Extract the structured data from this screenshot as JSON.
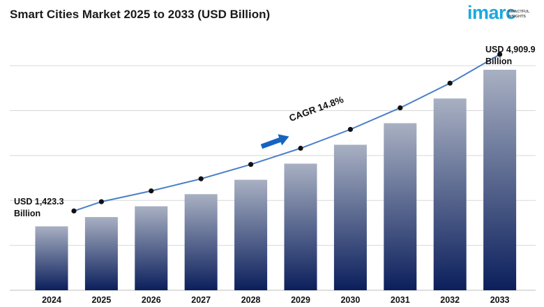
{
  "title": "Smart Cities Market 2025 to 2033 (USD Billion)",
  "logo": {
    "word": "imarc",
    "tagline_1": "IMPACTFUL",
    "tagline_2": "INSIGHTS"
  },
  "colors": {
    "bar_top": "#a8b0c2",
    "bar_bottom": "#0b1f5c",
    "line": "#4a7fc9",
    "arrow": "#1565c0",
    "logo": "#1ba8e0"
  },
  "chart_data": {
    "type": "bar",
    "title": "Smart Cities Market 2025 to 2033 (USD Billion)",
    "categories": [
      "2024",
      "2025",
      "2026",
      "2027",
      "2028",
      "2029",
      "2030",
      "2031",
      "2032",
      "2033"
    ],
    "values": [
      1423.3,
      1630,
      1870,
      2140,
      2460,
      2820,
      3240,
      3720,
      4270,
      4909.9
    ],
    "ylim": [
      0,
      5500
    ],
    "grid": true,
    "overlay_line": true,
    "annotations": {
      "start_value": "USD 1,423.3",
      "start_unit": "Billion",
      "end_value": "USD 4,909.9",
      "end_unit": "Billion",
      "cagr": "CAGR 14.8%"
    }
  }
}
